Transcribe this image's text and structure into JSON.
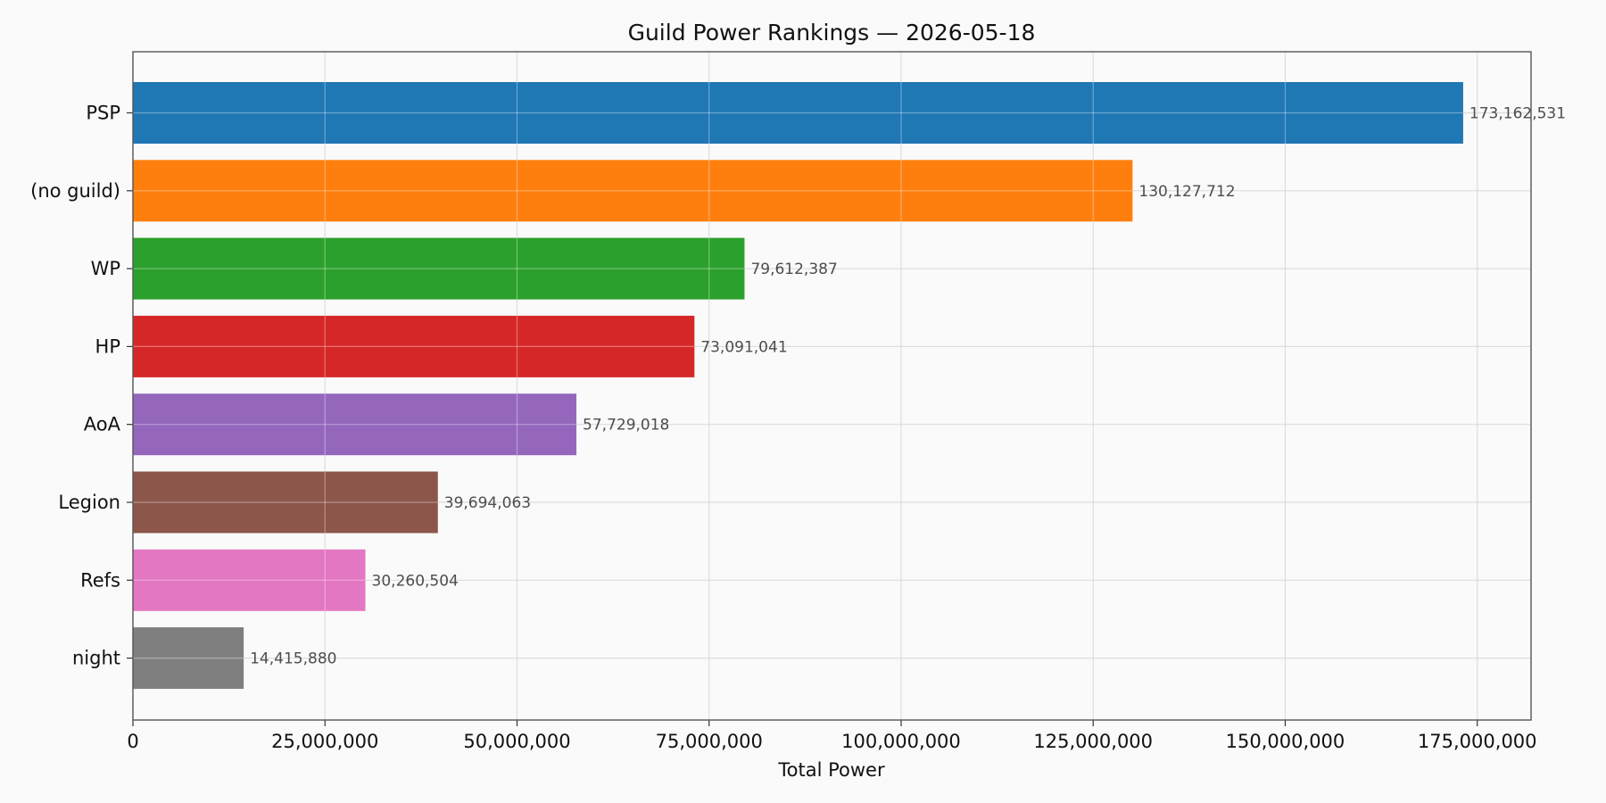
{
  "chart_data": {
    "type": "bar",
    "orientation": "horizontal",
    "title": "Guild Power Rankings — 2026-05-18",
    "xlabel": "Total Power",
    "ylabel": "",
    "xlim": [
      0,
      182000000
    ],
    "x_ticks": [
      0,
      25000000,
      50000000,
      75000000,
      100000000,
      125000000,
      150000000,
      175000000
    ],
    "x_tick_labels": [
      "0",
      "25,000,000",
      "50,000,000",
      "75,000,000",
      "100,000,000",
      "125,000,000",
      "150,000,000",
      "175,000,000"
    ],
    "grid": true,
    "categories": [
      "PSP",
      "(no guild)",
      "WP",
      "HP",
      "AoA",
      "Legion",
      "Refs",
      "night"
    ],
    "values": [
      173162531,
      130127712,
      79612387,
      73091041,
      57729018,
      39694063,
      30260504,
      14415880
    ],
    "value_labels": [
      "173,162,531",
      "130,127,712",
      "79,612,387",
      "73,091,041",
      "57,729,018",
      "39,694,063",
      "30,260,504",
      "14,415,880"
    ],
    "colors": [
      "#1f77b4",
      "#ff7f0e",
      "#2ca02c",
      "#d62728",
      "#9467bd",
      "#8c564b",
      "#e377c2",
      "#7f7f7f"
    ]
  }
}
